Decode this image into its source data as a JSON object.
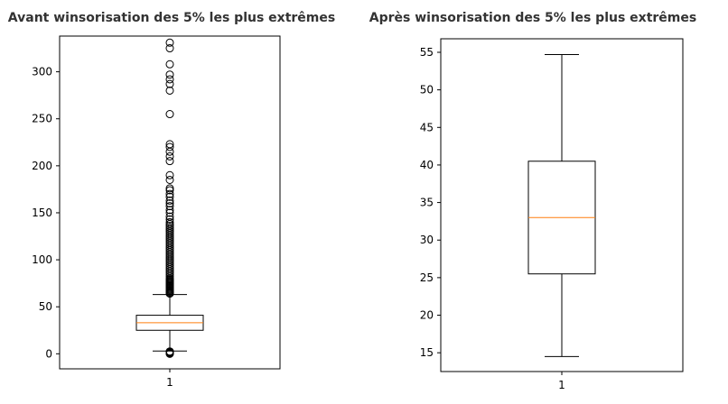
{
  "chart_data": [
    {
      "type": "boxplot",
      "title": "Avant winsorisation des 5% les plus extrêmes",
      "xlabel": "",
      "ylabel": "",
      "categories": [
        "1"
      ],
      "ylim": [
        -16,
        338
      ],
      "yticks": [
        0,
        50,
        100,
        150,
        200,
        250,
        300
      ],
      "box": {
        "whisker_low": 3,
        "q1": 25,
        "median": 33,
        "q3": 41,
        "whisker_high": 63
      },
      "outliers_high": [
        64,
        65,
        66,
        67,
        68,
        69,
        70,
        71,
        72,
        73,
        74,
        75,
        76,
        77,
        78,
        79,
        80,
        82,
        84,
        86,
        88,
        90,
        92,
        94,
        96,
        98,
        100,
        102,
        104,
        106,
        108,
        110,
        112,
        114,
        116,
        118,
        120,
        122,
        124,
        126,
        128,
        130,
        132,
        134,
        136,
        138,
        140,
        143,
        146,
        150,
        153,
        157,
        160,
        163,
        167,
        170,
        174,
        176,
        185,
        190,
        205,
        210,
        215,
        220,
        223,
        255,
        280,
        287,
        292,
        297,
        308,
        325,
        331
      ],
      "outliers_low": [
        0,
        0.5,
        1,
        1.5,
        2,
        2.5
      ],
      "colors": {
        "box": "#000000",
        "median": "#ff7f0e",
        "outlier": "#000000"
      }
    },
    {
      "type": "boxplot",
      "title": "Après winsorisation des 5% les plus extrêmes",
      "xlabel": "",
      "ylabel": "",
      "categories": [
        "1"
      ],
      "ylim": [
        12.5,
        56.8
      ],
      "yticks": [
        15,
        20,
        25,
        30,
        35,
        40,
        45,
        50,
        55
      ],
      "box": {
        "whisker_low": 14.5,
        "q1": 25.5,
        "median": 33,
        "q3": 40.5,
        "whisker_high": 54.7
      },
      "outliers_high": [],
      "outliers_low": [],
      "colors": {
        "box": "#000000",
        "median": "#ff7f0e",
        "outlier": "#000000"
      }
    }
  ]
}
